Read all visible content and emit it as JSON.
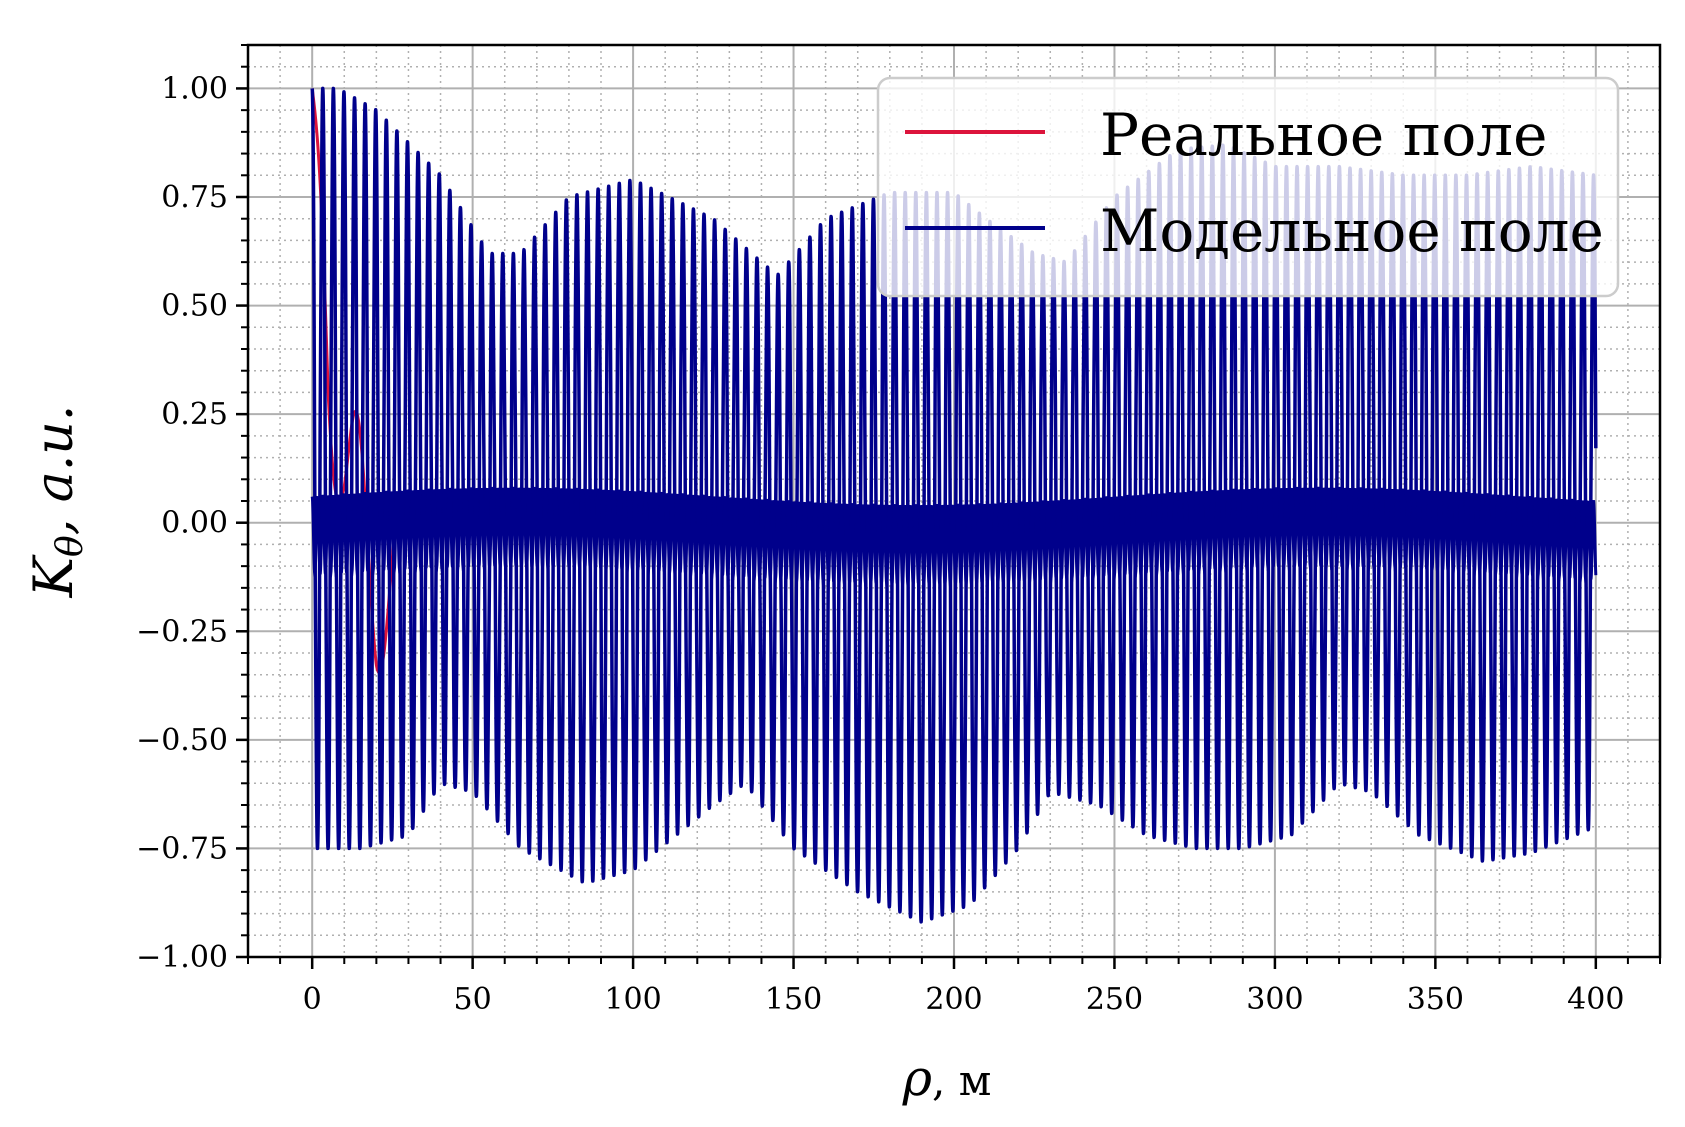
{
  "chart_data": {
    "type": "line",
    "xlabel": {
      "symbol": "ρ",
      "unit": ", м"
    },
    "ylabel": {
      "symbol": "K",
      "subscript": "θ",
      "unit": ", a.u."
    },
    "xlim": [
      -20,
      420
    ],
    "ylim": [
      -1.0,
      1.1
    ],
    "x_ticks": [
      0,
      50,
      100,
      150,
      200,
      250,
      300,
      350,
      400
    ],
    "x_tick_labels": [
      "0",
      "50",
      "100",
      "150",
      "200",
      "250",
      "300",
      "350",
      "400"
    ],
    "y_ticks": [
      1.0,
      0.75,
      0.5,
      0.25,
      0.0,
      -0.25,
      -0.5,
      -0.75,
      -1.0
    ],
    "y_tick_labels": [
      "1.00",
      "0.75",
      "0.50",
      "0.25",
      "0.00",
      "−0.25",
      "−0.50",
      "−0.75",
      "−1.00"
    ],
    "grid": true,
    "minor_grid": true,
    "legend_position": "top-right",
    "series": [
      {
        "name": "Реальное поле",
        "color": "#dc143c",
        "x_range": [
          0,
          30
        ],
        "envelope_max": [
          [
            0,
            1.0
          ],
          [
            5,
            0.7
          ],
          [
            10,
            0.35
          ],
          [
            20,
            0.1
          ],
          [
            30,
            0.05
          ]
        ],
        "envelope_min": [
          [
            0,
            1.0
          ],
          [
            5,
            0.2
          ],
          [
            12,
            -0.2
          ],
          [
            20,
            -0.35
          ],
          [
            30,
            -0.3
          ]
        ]
      },
      {
        "name": "Модельное поле",
        "color": "#00008b",
        "x_range": [
          0,
          400
        ],
        "period": 3.3,
        "envelope_max": [
          [
            0,
            1.0
          ],
          [
            8,
            1.0
          ],
          [
            20,
            0.95
          ],
          [
            40,
            0.8
          ],
          [
            55,
            0.62
          ],
          [
            65,
            0.62
          ],
          [
            80,
            0.75
          ],
          [
            100,
            0.79
          ],
          [
            125,
            0.7
          ],
          [
            140,
            0.6
          ],
          [
            145,
            0.57
          ],
          [
            160,
            0.7
          ],
          [
            180,
            0.76
          ],
          [
            200,
            0.76
          ],
          [
            210,
            0.7
          ],
          [
            225,
            0.62
          ],
          [
            235,
            0.6
          ],
          [
            250,
            0.75
          ],
          [
            270,
            0.86
          ],
          [
            285,
            0.87
          ],
          [
            300,
            0.82
          ],
          [
            320,
            0.82
          ],
          [
            340,
            0.8
          ],
          [
            360,
            0.8
          ],
          [
            380,
            0.82
          ],
          [
            400,
            0.8
          ]
        ],
        "envelope_min": [
          [
            0,
            -0.75
          ],
          [
            15,
            -0.75
          ],
          [
            30,
            -0.72
          ],
          [
            40,
            -0.6
          ],
          [
            50,
            -0.62
          ],
          [
            65,
            -0.75
          ],
          [
            85,
            -0.83
          ],
          [
            100,
            -0.8
          ],
          [
            125,
            -0.65
          ],
          [
            135,
            -0.6
          ],
          [
            150,
            -0.75
          ],
          [
            170,
            -0.85
          ],
          [
            190,
            -0.92
          ],
          [
            205,
            -0.88
          ],
          [
            220,
            -0.75
          ],
          [
            230,
            -0.62
          ],
          [
            245,
            -0.65
          ],
          [
            260,
            -0.72
          ],
          [
            275,
            -0.75
          ],
          [
            290,
            -0.75
          ],
          [
            305,
            -0.72
          ],
          [
            320,
            -0.6
          ],
          [
            330,
            -0.62
          ],
          [
            345,
            -0.72
          ],
          [
            365,
            -0.78
          ],
          [
            380,
            -0.76
          ],
          [
            400,
            -0.7
          ]
        ]
      }
    ]
  }
}
